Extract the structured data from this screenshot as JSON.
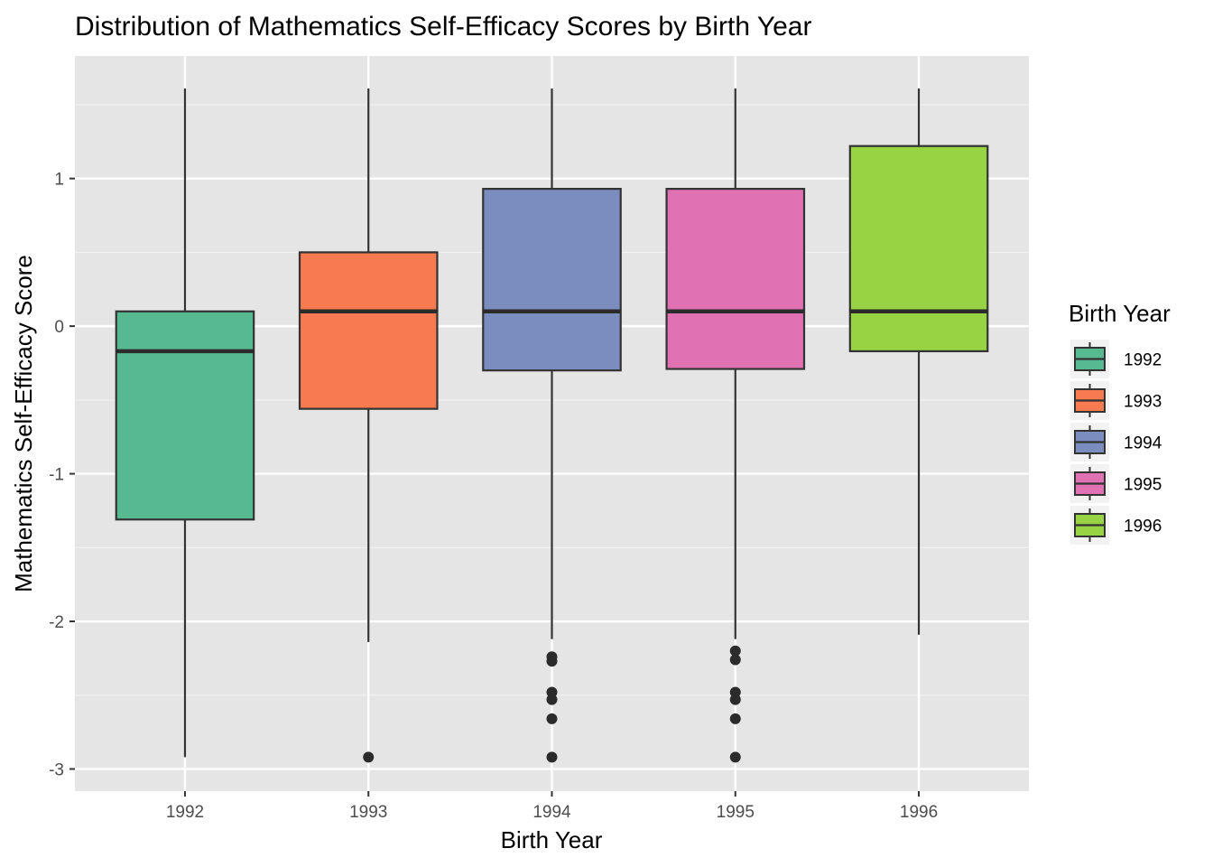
{
  "chart_data": {
    "type": "boxplot",
    "title": "Distribution of Mathematics Self-Efficacy Scores by Birth Year",
    "xlabel": "Birth Year",
    "ylabel": "Mathematics Self-Efficacy Score",
    "categories": [
      "1992",
      "1993",
      "1994",
      "1995",
      "1996"
    ],
    "ylim": [
      -3.15,
      1.83
    ],
    "yticks": [
      -3,
      -2,
      -1,
      0,
      1
    ],
    "ytick_labels": [
      "-3",
      "-2",
      "-1",
      "0",
      "1"
    ],
    "grid": true,
    "legend": {
      "title": "Birth Year",
      "position": "right",
      "entries": [
        "1992",
        "1993",
        "1994",
        "1995",
        "1996"
      ]
    },
    "colors": [
      "#57B992",
      "#F87A50",
      "#7B8DBF",
      "#E072B4",
      "#98D344"
    ],
    "series": [
      {
        "name": "1992",
        "whisker_low": -2.92,
        "q1": -1.31,
        "median": -0.17,
        "q3": 0.1,
        "whisker_high": 1.61,
        "outliers": []
      },
      {
        "name": "1993",
        "whisker_low": -2.14,
        "q1": -0.56,
        "median": 0.1,
        "q3": 0.5,
        "whisker_high": 1.61,
        "outliers": [
          -2.92
        ]
      },
      {
        "name": "1994",
        "whisker_low": -2.12,
        "q1": -0.3,
        "median": 0.1,
        "q3": 0.93,
        "whisker_high": 1.61,
        "outliers": [
          -2.24,
          -2.27,
          -2.48,
          -2.53,
          -2.66,
          -2.92
        ]
      },
      {
        "name": "1995",
        "whisker_low": -2.12,
        "q1": -0.29,
        "median": 0.1,
        "q3": 0.93,
        "whisker_high": 1.61,
        "outliers": [
          -2.2,
          -2.26,
          -2.48,
          -2.53,
          -2.66,
          -2.92
        ]
      },
      {
        "name": "1996",
        "whisker_low": -2.09,
        "q1": -0.17,
        "median": 0.1,
        "q3": 1.22,
        "whisker_high": 1.61,
        "outliers": []
      }
    ]
  }
}
